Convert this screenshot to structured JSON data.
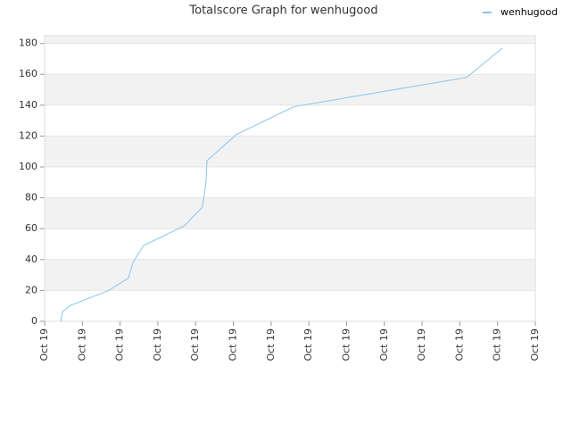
{
  "chart_data": {
    "type": "line",
    "title": "Totalscore Graph for wenhugood",
    "x": [
      0.43,
      0.45,
      0.47,
      0.57,
      0.66,
      1.28,
      1.7,
      2.22,
      2.34,
      2.62,
      3.71,
      4.18,
      4.26,
      4.28,
      4.3,
      5.08,
      6.6,
      11.18,
      12.13
    ],
    "series": [
      {
        "name": "wenhugood",
        "color": "#88c4f0",
        "values": [
          0,
          3,
          6,
          8,
          10,
          16,
          20,
          28,
          38,
          49,
          62,
          74,
          87,
          92,
          104,
          121,
          139,
          158,
          177
        ]
      }
    ],
    "xlim": [
      0,
      13
    ],
    "xticks": [
      {
        "value": 0,
        "label": "Oct 19"
      },
      {
        "value": 1,
        "label": "Oct 19"
      },
      {
        "value": 2,
        "label": "Oct 19"
      },
      {
        "value": 3,
        "label": "Oct 19"
      },
      {
        "value": 4,
        "label": "Oct 19"
      },
      {
        "value": 5,
        "label": "Oct 19"
      },
      {
        "value": 6,
        "label": "Oct 19"
      },
      {
        "value": 7,
        "label": "Oct 19"
      },
      {
        "value": 8,
        "label": "Oct 19"
      },
      {
        "value": 9,
        "label": "Oct 19"
      },
      {
        "value": 10,
        "label": "Oct 19"
      },
      {
        "value": 11,
        "label": "Oct 19"
      },
      {
        "value": 12,
        "label": "Oct 19"
      },
      {
        "value": 13,
        "label": "Oct 19"
      }
    ],
    "ylim": [
      0,
      185
    ],
    "yticks": [
      0,
      20,
      40,
      60,
      80,
      100,
      120,
      140,
      160,
      180
    ],
    "grid": true,
    "legend": "top-right"
  }
}
